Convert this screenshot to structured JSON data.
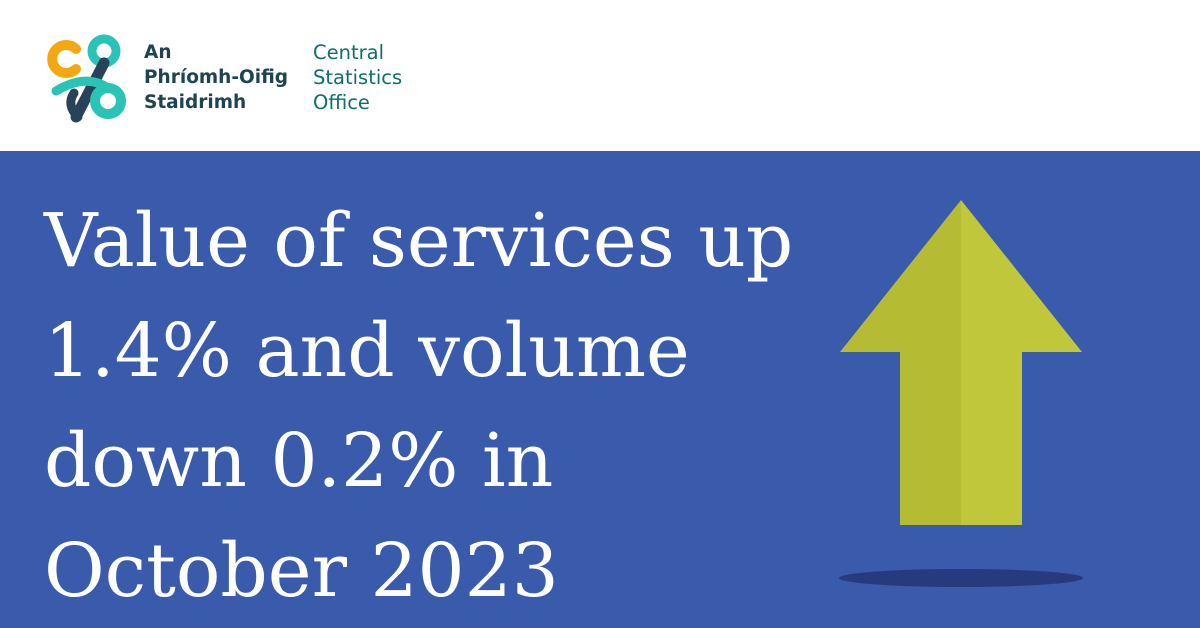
{
  "header": {
    "org_name_irish": [
      "An",
      "Phríomh-Oifig",
      "Staidrimh"
    ],
    "org_name_english": [
      "Central",
      "Statistics",
      "Office"
    ]
  },
  "headline": {
    "lines": [
      "Value of services up",
      "1.4% and volume",
      "down 0.2% in",
      "October 2023"
    ]
  },
  "colors": {
    "header_background": "#ffffff",
    "panel_background": "#3a5aab",
    "headline_text": "#ffffff",
    "logo_orange": "#f3a812",
    "logo_teal": "#29c4b5",
    "logo_navy": "#28425a",
    "org_name_irish_text": "#1e4351",
    "org_name_english_text": "#0e6e6a",
    "arrow_light": "#c1c73b",
    "arrow_dark": "#b5bc33",
    "arrow_shadow": "#283a7e"
  },
  "icons": {
    "logo": "cso-logo-icon",
    "arrow": "up-arrow-icon"
  }
}
